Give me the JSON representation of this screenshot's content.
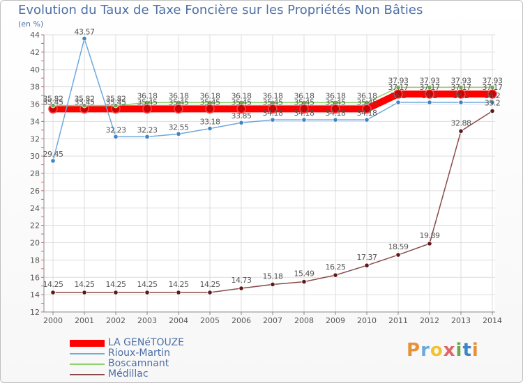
{
  "title": "Evolution du Taux de Taxe Foncière sur les Propriétés Non Bâties",
  "unit": "(en %)",
  "logo": "Proxiti",
  "chart_data": {
    "type": "line",
    "title": "Evolution du Taux de Taxe Foncière sur les Propriétés Non Bâties",
    "ylabel": "(en %)",
    "xlabel": "",
    "ylim": [
      12,
      44
    ],
    "yticks": [
      "12",
      "14",
      "16",
      "18",
      "20",
      "22",
      "24",
      "26",
      "28",
      "30",
      "32",
      "34",
      "36",
      "38",
      "40",
      "42",
      "44"
    ],
    "grid": true,
    "legend_position": "bottom-left",
    "x": [
      "2000",
      "2001",
      "2002",
      "2003",
      "2004",
      "2005",
      "2006",
      "2007",
      "2008",
      "2009",
      "2010",
      "2011",
      "2012",
      "2013",
      "2014"
    ],
    "series": [
      {
        "name": "LA GENéTOUZE",
        "color": "#ff0000",
        "marker": "#cc0000",
        "values": [
          35.45,
          35.45,
          35.45,
          35.45,
          35.45,
          35.45,
          35.45,
          35.45,
          35.45,
          35.45,
          35.45,
          37.17,
          37.17,
          37.17,
          37.17
        ],
        "labels": [
          "35.45",
          "35.45",
          "35.45",
          "35.45",
          "35.45",
          "35.45",
          "35.45",
          "35.45",
          "35.45",
          "35.45",
          "35.45",
          "37.17",
          "37.17",
          "37.17",
          "37.17"
        ]
      },
      {
        "name": "Rioux-Martin",
        "color": "#6fa8dc",
        "marker": "#3d85c6",
        "values": [
          29.45,
          43.57,
          32.23,
          32.23,
          32.55,
          33.18,
          33.85,
          34.18,
          34.18,
          34.18,
          34.18,
          36.2,
          36.2,
          36.2,
          36.2
        ],
        "labels": [
          "29.45",
          "43.57",
          "32.23",
          "32.23",
          "32.55",
          "33.18",
          "33.85",
          "34.18",
          "34.18",
          "34.18",
          "34.18",
          "36.2",
          "36.2",
          "36.2",
          "36.2"
        ]
      },
      {
        "name": "Boscamnant",
        "color": "#8fd16a",
        "marker": "#6aa84f",
        "values": [
          35.82,
          35.82,
          35.82,
          36.18,
          36.18,
          36.18,
          36.18,
          36.18,
          36.18,
          36.18,
          36.18,
          37.93,
          37.93,
          37.93,
          37.93
        ],
        "labels": [
          "35.82",
          "35.82",
          "35.82",
          "36.18",
          "36.18",
          "36.18",
          "36.18",
          "36.18",
          "36.18",
          "36.18",
          "36.18",
          "37.93",
          "37.93",
          "37.93",
          "37.93"
        ]
      },
      {
        "name": "Médillac",
        "color": "#8b4b4b",
        "marker": "#5c1a1a",
        "values": [
          14.25,
          14.25,
          14.25,
          14.25,
          14.25,
          14.25,
          14.73,
          15.18,
          15.49,
          16.25,
          17.37,
          18.59,
          19.89,
          32.88,
          35.2
        ],
        "labels": [
          "14.25",
          "14.25",
          "14.25",
          "14.25",
          "14.25",
          "14.25",
          "14.73",
          "15.18",
          "15.49",
          "16.25",
          "17.37",
          "18.59",
          "19.89",
          "32.88",
          "35.2"
        ]
      }
    ]
  }
}
